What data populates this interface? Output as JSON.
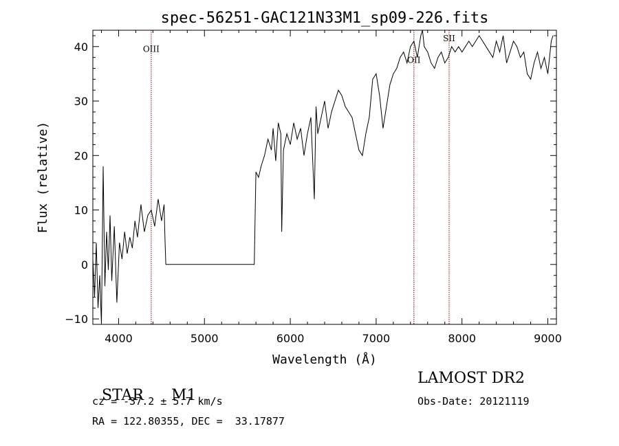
{
  "chart_data": {
    "type": "line",
    "title": "spec-56251-GAC121N33M1_sp09-226.fits",
    "xlabel": "Wavelength (Å)",
    "ylabel": "Flux (relative)",
    "xlim": [
      3700,
      9100
    ],
    "ylim": [
      -11,
      43
    ],
    "x_ticks": [
      4000,
      5000,
      6000,
      7000,
      8000,
      9000
    ],
    "y_ticks": [
      -10,
      0,
      10,
      20,
      30,
      40
    ],
    "grid": false,
    "line_color": "#000000",
    "marker_color": "#8b0000",
    "spectral_lines": [
      {
        "name": "OIII",
        "x": 4380,
        "label_y": 39
      },
      {
        "name": "OII",
        "x": 7440,
        "label_y": 37
      },
      {
        "name": "SII",
        "x": 7850,
        "label_y": 41
      }
    ],
    "series": [
      {
        "x": [
          3700,
          3720,
          3740,
          3760,
          3780,
          3800,
          3820,
          3840,
          3860,
          3880,
          3900,
          3920,
          3950,
          3980,
          4010,
          4040,
          4070,
          4100,
          4130,
          4160,
          4190,
          4220,
          4260,
          4300,
          4340,
          4380,
          4420,
          4460,
          4500,
          4530,
          4540,
          4550,
          5570,
          5580,
          5600,
          5630,
          5660,
          5700,
          5740,
          5780,
          5800,
          5830,
          5860,
          5890,
          5900,
          5920,
          5960,
          6000,
          6040,
          6080,
          6120,
          6160,
          6200,
          6240,
          6280,
          6300,
          6320,
          6360,
          6400,
          6440,
          6480,
          6520,
          6560,
          6600,
          6640,
          6680,
          6720,
          6760,
          6800,
          6840,
          6880,
          6920,
          6960,
          7000,
          7040,
          7080,
          7120,
          7160,
          7200,
          7240,
          7280,
          7320,
          7360,
          7400,
          7440,
          7480,
          7520,
          7540,
          7560,
          7600,
          7640,
          7680,
          7720,
          7760,
          7800,
          7840,
          7880,
          7920,
          7960,
          8000,
          8040,
          8080,
          8120,
          8160,
          8200,
          8240,
          8280,
          8320,
          8360,
          8400,
          8440,
          8480,
          8520,
          8560,
          8600,
          8640,
          8680,
          8720,
          8760,
          8800,
          8840,
          8880,
          8920,
          8960,
          9000,
          9040,
          9060
        ],
        "y": [
          1,
          -6,
          4,
          -8,
          -2,
          -11,
          18,
          -4,
          6,
          -1,
          9,
          -3,
          7,
          -7,
          4,
          1,
          6,
          2,
          5,
          3,
          8,
          5,
          11,
          6,
          9,
          10,
          7,
          12,
          8,
          11,
          5,
          0,
          0,
          0,
          17,
          16,
          18,
          20,
          23,
          21,
          25,
          19,
          26,
          24,
          6,
          21,
          24,
          22,
          26,
          23,
          25,
          20,
          24,
          27,
          12,
          29,
          24,
          27,
          30,
          25,
          28,
          30,
          32,
          31,
          29,
          28,
          27,
          24,
          21,
          20,
          24,
          27,
          34,
          35,
          31,
          25,
          29,
          33,
          35,
          36,
          38,
          39,
          37,
          40,
          41,
          38,
          42,
          43,
          40,
          39,
          37,
          36,
          38,
          39,
          37,
          38,
          40,
          39,
          40,
          39,
          40,
          41,
          40,
          41,
          42,
          41,
          40,
          39,
          38,
          41,
          39,
          42,
          37,
          39,
          41,
          40,
          38,
          39,
          35,
          34,
          37,
          39,
          36,
          38,
          35,
          41,
          42
        ]
      }
    ],
    "info": {
      "left_line1_a": "STAR",
      "left_line1_b": "M1",
      "left_line2": "cz = -37.2 ± 5.7 km/s",
      "left_line3": "RA = 122.80355, DEC =  33.17877",
      "right_line1": "LAMOST DR2",
      "right_line2": "Obs-Date: 20121119"
    }
  }
}
